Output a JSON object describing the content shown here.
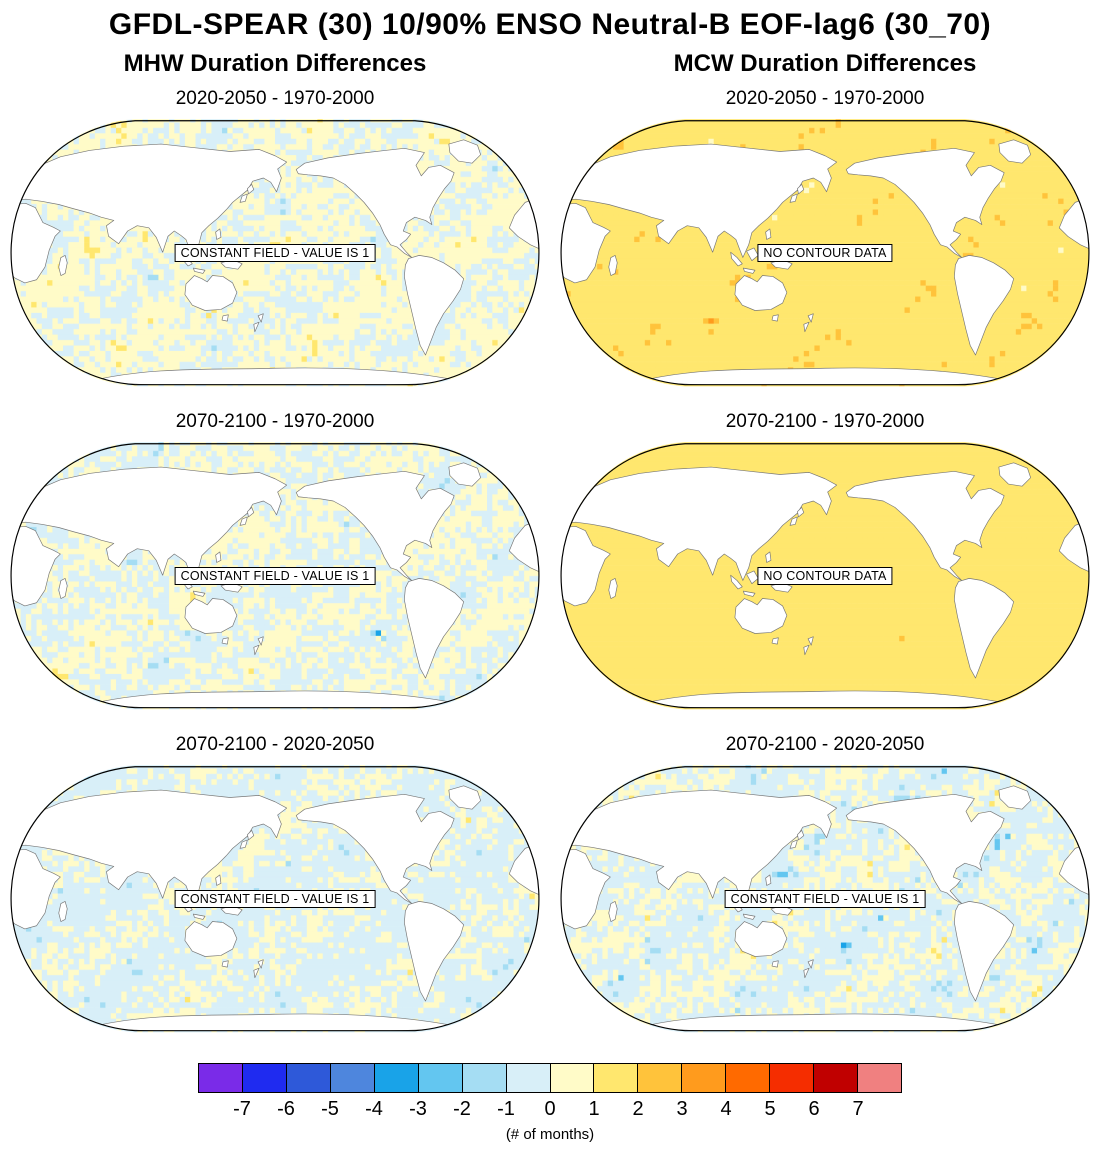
{
  "figure_title": "GFDL-SPEAR (30) 10/90% ENSO Neutral-B EOF-lag6 (30_70)",
  "columns": [
    {
      "title": "MHW Duration Differences"
    },
    {
      "title": "MCW Duration Differences"
    }
  ],
  "chart_data": {
    "type": "heatmap",
    "projection": "Robinson world map, Pacific-centered, land masked white",
    "units": "# of months",
    "panels": [
      {
        "id": "mhw-2020-2050-minus-1970-2000",
        "column": "MHW",
        "title": "2020-2050 - 1970-2000",
        "annotation": "CONSTANT FIELD - VALUE IS 1",
        "seed": 3,
        "fill_weights": [
          [
            "#19A3E8",
            0.004
          ],
          [
            "#63C6F0",
            0.012
          ],
          [
            "#A5DDF3",
            0.055
          ],
          [
            "#D8EFF8",
            0.36
          ],
          [
            "#FFFBC8",
            0.44
          ],
          [
            "#FFE76E",
            0.105
          ],
          [
            "#FFC33B",
            0.013
          ],
          [
            "#FF9B1D",
            0.007
          ],
          [
            "#F52D00",
            0.003
          ],
          [
            "#C00000",
            0.001
          ]
        ]
      },
      {
        "id": "mcw-2020-2050-minus-1970-2000",
        "column": "MCW",
        "title": "2020-2050 - 1970-2000",
        "annotation": "NO CONTOUR DATA",
        "seed": 21,
        "fill_weights": [
          [
            "#D8EFF8",
            0.004
          ],
          [
            "#FFFBC8",
            0.07
          ],
          [
            "#FFE76E",
            0.77
          ],
          [
            "#FFC33B",
            0.11
          ],
          [
            "#FF9B1D",
            0.032
          ],
          [
            "#FF6A00",
            0.008
          ],
          [
            "#F52D00",
            0.004
          ],
          [
            "#C00000",
            0.002
          ]
        ]
      },
      {
        "id": "mhw-2070-2100-minus-1970-2000",
        "column": "MHW",
        "title": "2070-2100 - 1970-2000",
        "annotation": "CONSTANT FIELD - VALUE IS 1",
        "seed": 7,
        "fill_weights": [
          [
            "#19A3E8",
            0.005
          ],
          [
            "#63C6F0",
            0.015
          ],
          [
            "#A5DDF3",
            0.07
          ],
          [
            "#D8EFF8",
            0.41
          ],
          [
            "#FFFBC8",
            0.42
          ],
          [
            "#FFE76E",
            0.065
          ],
          [
            "#FFC33B",
            0.009
          ],
          [
            "#FF9B1D",
            0.004
          ],
          [
            "#F52D00",
            0.002
          ]
        ]
      },
      {
        "id": "mcw-2070-2100-minus-1970-2000",
        "column": "MCW",
        "title": "2070-2100 - 1970-2000",
        "annotation": "NO CONTOUR DATA",
        "seed": 29,
        "fill_weights": [
          [
            "#FFFBC8",
            0.035
          ],
          [
            "#FFE76E",
            0.935
          ],
          [
            "#FFC33B",
            0.022
          ],
          [
            "#FF9B1D",
            0.005
          ],
          [
            "#F52D00",
            0.002
          ],
          [
            "#C00000",
            0.001
          ]
        ]
      },
      {
        "id": "mhw-2070-2100-minus-2020-2050",
        "column": "MHW",
        "title": "2070-2100 - 2020-2050",
        "annotation": "CONSTANT FIELD - VALUE IS 1",
        "seed": 12,
        "fill_weights": [
          [
            "#4E86DD",
            0.002
          ],
          [
            "#19A3E8",
            0.006
          ],
          [
            "#63C6F0",
            0.02
          ],
          [
            "#A5DDF3",
            0.08
          ],
          [
            "#D8EFF8",
            0.5
          ],
          [
            "#FFFBC8",
            0.355
          ],
          [
            "#FFE76E",
            0.03
          ],
          [
            "#FFC33B",
            0.005
          ],
          [
            "#FF9B1D",
            0.002
          ]
        ]
      },
      {
        "id": "mcw-2070-2100-minus-2020-2050",
        "column": "MCW",
        "title": "2070-2100 - 2020-2050",
        "annotation": "CONSTANT FIELD - VALUE IS 1",
        "seed": 35,
        "fill_weights": [
          [
            "#4E86DD",
            0.004
          ],
          [
            "#19A3E8",
            0.014
          ],
          [
            "#63C6F0",
            0.04
          ],
          [
            "#A5DDF3",
            0.09
          ],
          [
            "#D8EFF8",
            0.42
          ],
          [
            "#FFFBC8",
            0.33
          ],
          [
            "#FFE76E",
            0.09
          ],
          [
            "#FFC33B",
            0.009
          ],
          [
            "#FF9B1D",
            0.003
          ]
        ]
      }
    ],
    "colorbar": {
      "caption": "(# of months)",
      "tick_labels": [
        "-7",
        "-6",
        "-5",
        "-4",
        "-3",
        "-2",
        "-1",
        "0",
        "1",
        "2",
        "3",
        "4",
        "5",
        "6",
        "7"
      ],
      "colors": [
        "#7A2BE8",
        "#1F2BF0",
        "#2E59D9",
        "#4E86DD",
        "#19A3E8",
        "#63C6F0",
        "#A5DDF3",
        "#D8EFF8",
        "#FFFBC8",
        "#FFE76E",
        "#FFC33B",
        "#FF9B1D",
        "#FF6A00",
        "#F52D00",
        "#C00000",
        "#F08080"
      ]
    }
  }
}
